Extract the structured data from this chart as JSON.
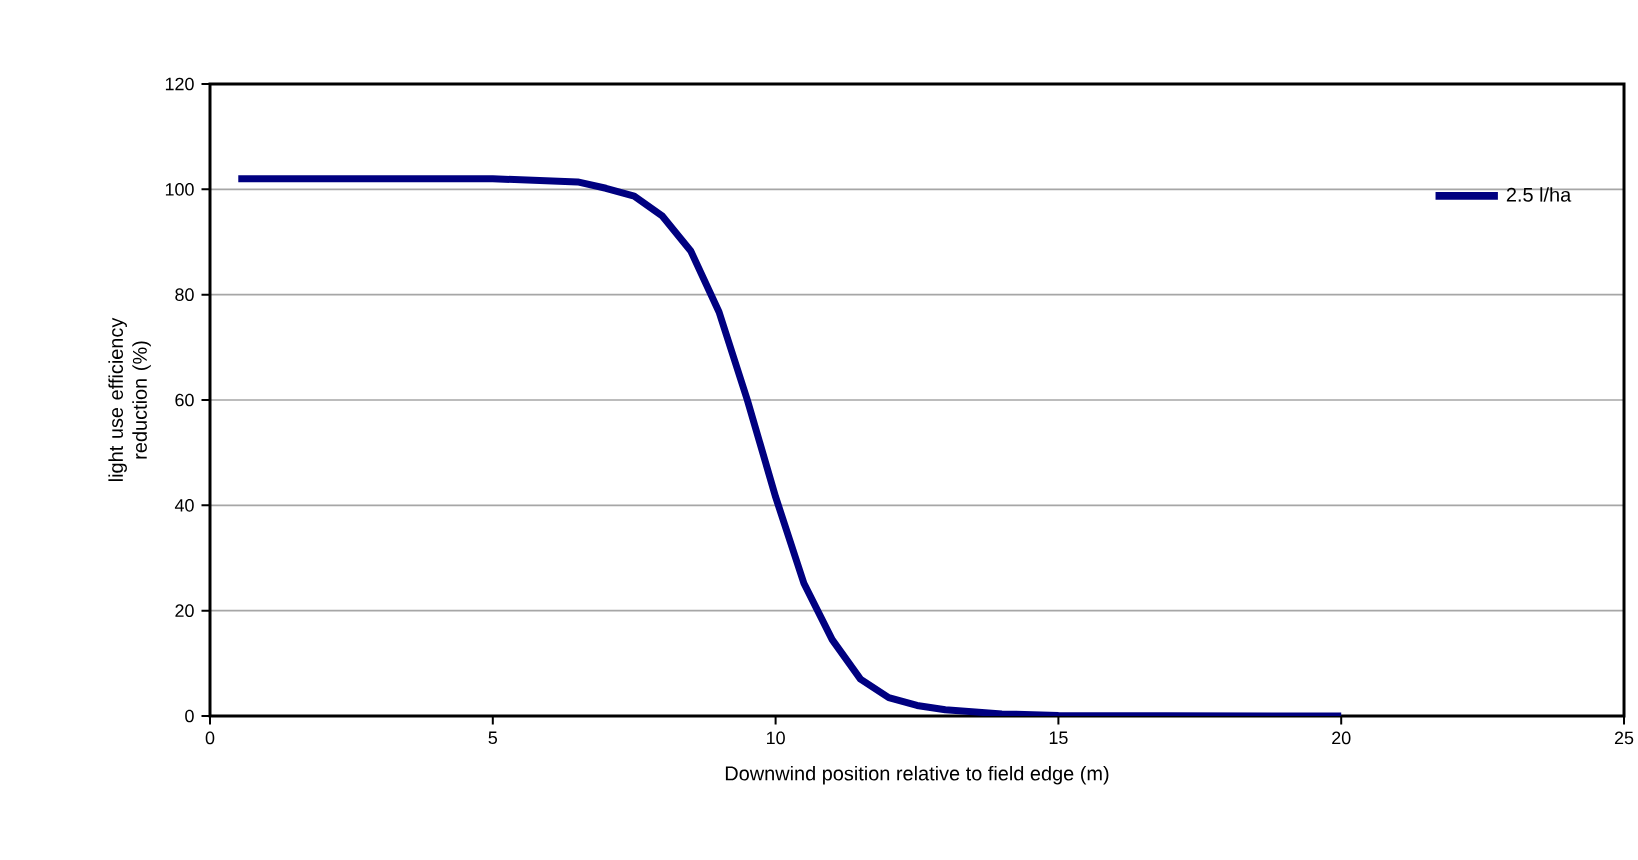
{
  "chart_data": {
    "type": "line",
    "xlabel": "Downwind position relative to field edge (m)",
    "ylabel": "light use efficiency reduction (%)",
    "xlim": [
      0,
      25
    ],
    "xticks": [
      0,
      5,
      10,
      15,
      20,
      25
    ],
    "ylim": [
      0,
      120
    ],
    "yticks": [
      0,
      20,
      40,
      60,
      80,
      100,
      120
    ],
    "grid": "y",
    "legend": "top right",
    "marker": "none",
    "line_style": "solid",
    "series": [
      {
        "name": "2.5 l/ha",
        "color": "#000080",
        "x": [
          0.5,
          5,
          6.5,
          7,
          7.5,
          8,
          8.5,
          9,
          9.5,
          10,
          10.5,
          11,
          11.5,
          12,
          12.5,
          13,
          14,
          15,
          20
        ],
        "values": [
          102,
          102,
          101.4,
          100.2,
          98.7,
          94.9,
          88.3,
          76.7,
          60,
          41.6,
          25.2,
          14.5,
          7,
          3.5,
          2,
          1.2,
          0.4,
          0.1,
          0
        ]
      }
    ]
  }
}
